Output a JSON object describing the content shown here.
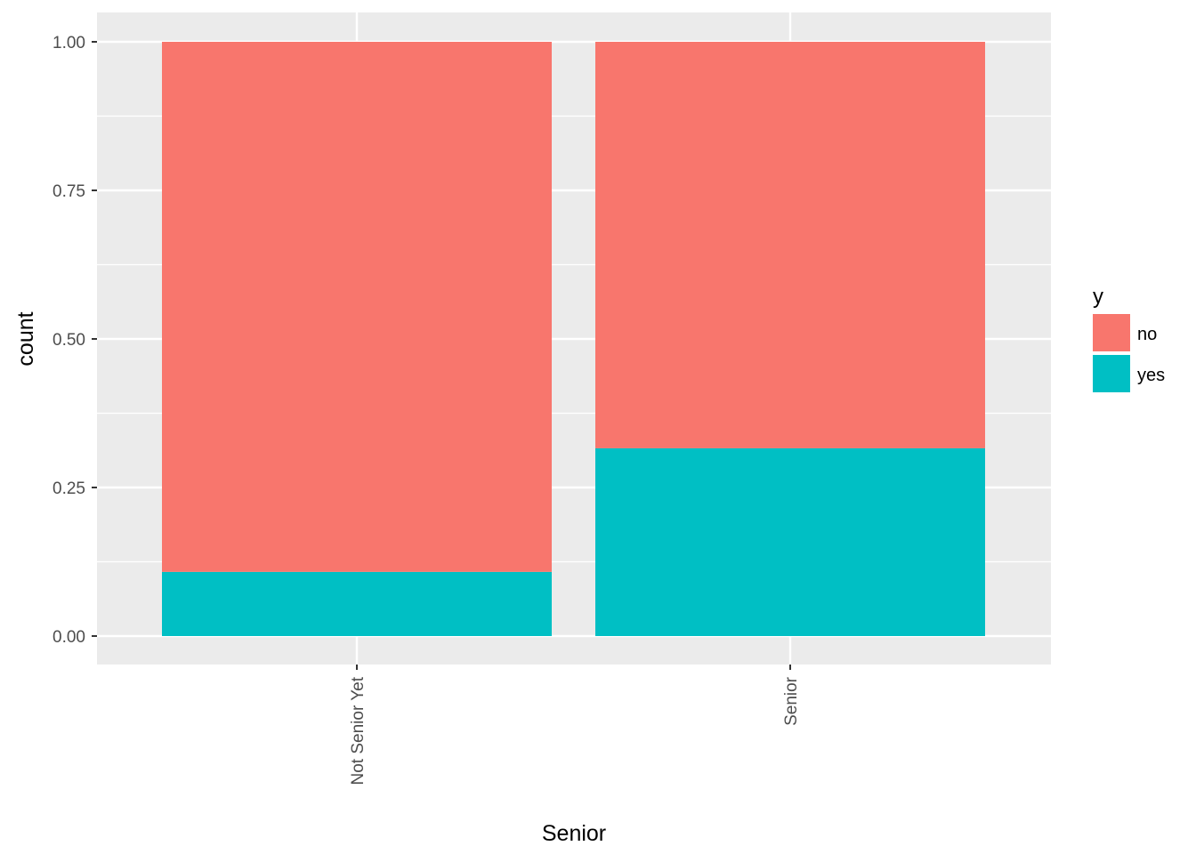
{
  "chart_data": {
    "type": "bar",
    "stacked": true,
    "categories": [
      "Not Senior Yet",
      "Senior"
    ],
    "series": [
      {
        "name": "no",
        "values": [
          0.892,
          0.684
        ],
        "color": "#F8766D"
      },
      {
        "name": "yes",
        "values": [
          0.108,
          0.316
        ],
        "color": "#00BFC4"
      }
    ],
    "xlabel": "Senior",
    "ylabel": "count",
    "ylim": [
      0,
      1
    ],
    "yticks": [
      "0.00",
      "0.25",
      "0.50",
      "0.75",
      "1.00"
    ],
    "ytick_values": [
      0,
      0.25,
      0.5,
      0.75,
      1.0
    ],
    "x_tick_label_rotation": -90,
    "grid": true,
    "legend": {
      "title": "y",
      "position": "right"
    },
    "panel_background": "#EBEBEB",
    "gridline_color": "#FFFFFF"
  }
}
